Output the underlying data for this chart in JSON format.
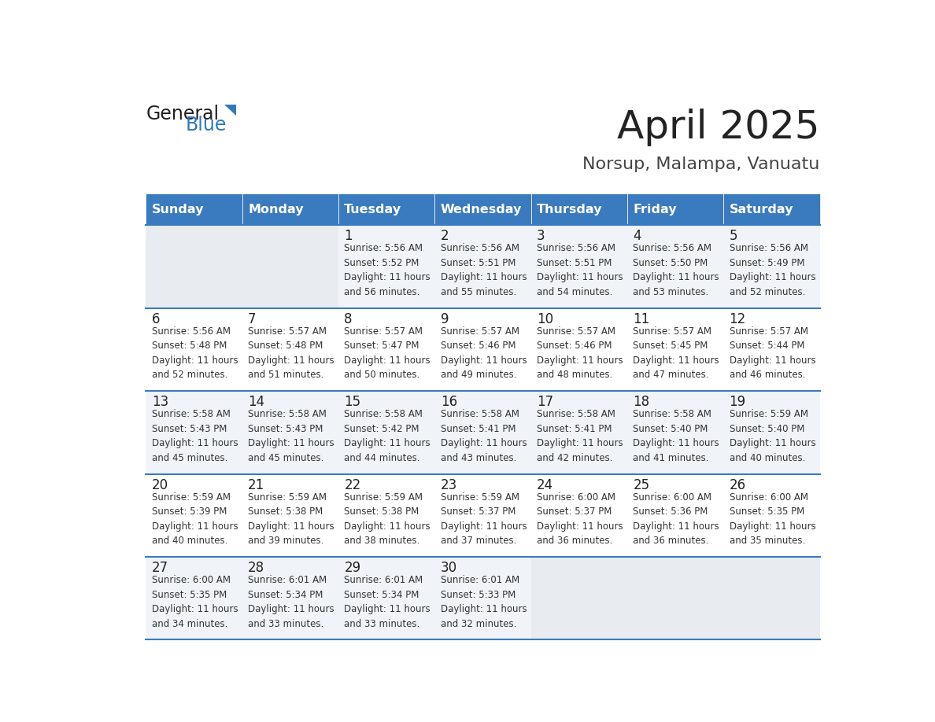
{
  "title": "April 2025",
  "subtitle": "Norsup, Malampa, Vanuatu",
  "days_of_week": [
    "Sunday",
    "Monday",
    "Tuesday",
    "Wednesday",
    "Thursday",
    "Friday",
    "Saturday"
  ],
  "header_bg": "#3a7abf",
  "header_text": "#ffffff",
  "row_bg_odd": "#f0f4f8",
  "row_bg_even": "#ffffff",
  "cell_bg_empty": "#e8ecf0",
  "border_color": "#3a7abf",
  "title_color": "#222222",
  "subtitle_color": "#444444",
  "day_number_color": "#222222",
  "cell_text_color": "#333333",
  "calendar": [
    [
      {
        "day": null,
        "info": ""
      },
      {
        "day": null,
        "info": ""
      },
      {
        "day": 1,
        "info": "Sunrise: 5:56 AM\nSunset: 5:52 PM\nDaylight: 11 hours\nand 56 minutes."
      },
      {
        "day": 2,
        "info": "Sunrise: 5:56 AM\nSunset: 5:51 PM\nDaylight: 11 hours\nand 55 minutes."
      },
      {
        "day": 3,
        "info": "Sunrise: 5:56 AM\nSunset: 5:51 PM\nDaylight: 11 hours\nand 54 minutes."
      },
      {
        "day": 4,
        "info": "Sunrise: 5:56 AM\nSunset: 5:50 PM\nDaylight: 11 hours\nand 53 minutes."
      },
      {
        "day": 5,
        "info": "Sunrise: 5:56 AM\nSunset: 5:49 PM\nDaylight: 11 hours\nand 52 minutes."
      }
    ],
    [
      {
        "day": 6,
        "info": "Sunrise: 5:56 AM\nSunset: 5:48 PM\nDaylight: 11 hours\nand 52 minutes."
      },
      {
        "day": 7,
        "info": "Sunrise: 5:57 AM\nSunset: 5:48 PM\nDaylight: 11 hours\nand 51 minutes."
      },
      {
        "day": 8,
        "info": "Sunrise: 5:57 AM\nSunset: 5:47 PM\nDaylight: 11 hours\nand 50 minutes."
      },
      {
        "day": 9,
        "info": "Sunrise: 5:57 AM\nSunset: 5:46 PM\nDaylight: 11 hours\nand 49 minutes."
      },
      {
        "day": 10,
        "info": "Sunrise: 5:57 AM\nSunset: 5:46 PM\nDaylight: 11 hours\nand 48 minutes."
      },
      {
        "day": 11,
        "info": "Sunrise: 5:57 AM\nSunset: 5:45 PM\nDaylight: 11 hours\nand 47 minutes."
      },
      {
        "day": 12,
        "info": "Sunrise: 5:57 AM\nSunset: 5:44 PM\nDaylight: 11 hours\nand 46 minutes."
      }
    ],
    [
      {
        "day": 13,
        "info": "Sunrise: 5:58 AM\nSunset: 5:43 PM\nDaylight: 11 hours\nand 45 minutes."
      },
      {
        "day": 14,
        "info": "Sunrise: 5:58 AM\nSunset: 5:43 PM\nDaylight: 11 hours\nand 45 minutes."
      },
      {
        "day": 15,
        "info": "Sunrise: 5:58 AM\nSunset: 5:42 PM\nDaylight: 11 hours\nand 44 minutes."
      },
      {
        "day": 16,
        "info": "Sunrise: 5:58 AM\nSunset: 5:41 PM\nDaylight: 11 hours\nand 43 minutes."
      },
      {
        "day": 17,
        "info": "Sunrise: 5:58 AM\nSunset: 5:41 PM\nDaylight: 11 hours\nand 42 minutes."
      },
      {
        "day": 18,
        "info": "Sunrise: 5:58 AM\nSunset: 5:40 PM\nDaylight: 11 hours\nand 41 minutes."
      },
      {
        "day": 19,
        "info": "Sunrise: 5:59 AM\nSunset: 5:40 PM\nDaylight: 11 hours\nand 40 minutes."
      }
    ],
    [
      {
        "day": 20,
        "info": "Sunrise: 5:59 AM\nSunset: 5:39 PM\nDaylight: 11 hours\nand 40 minutes."
      },
      {
        "day": 21,
        "info": "Sunrise: 5:59 AM\nSunset: 5:38 PM\nDaylight: 11 hours\nand 39 minutes."
      },
      {
        "day": 22,
        "info": "Sunrise: 5:59 AM\nSunset: 5:38 PM\nDaylight: 11 hours\nand 38 minutes."
      },
      {
        "day": 23,
        "info": "Sunrise: 5:59 AM\nSunset: 5:37 PM\nDaylight: 11 hours\nand 37 minutes."
      },
      {
        "day": 24,
        "info": "Sunrise: 6:00 AM\nSunset: 5:37 PM\nDaylight: 11 hours\nand 36 minutes."
      },
      {
        "day": 25,
        "info": "Sunrise: 6:00 AM\nSunset: 5:36 PM\nDaylight: 11 hours\nand 36 minutes."
      },
      {
        "day": 26,
        "info": "Sunrise: 6:00 AM\nSunset: 5:35 PM\nDaylight: 11 hours\nand 35 minutes."
      }
    ],
    [
      {
        "day": 27,
        "info": "Sunrise: 6:00 AM\nSunset: 5:35 PM\nDaylight: 11 hours\nand 34 minutes."
      },
      {
        "day": 28,
        "info": "Sunrise: 6:01 AM\nSunset: 5:34 PM\nDaylight: 11 hours\nand 33 minutes."
      },
      {
        "day": 29,
        "info": "Sunrise: 6:01 AM\nSunset: 5:34 PM\nDaylight: 11 hours\nand 33 minutes."
      },
      {
        "day": 30,
        "info": "Sunrise: 6:01 AM\nSunset: 5:33 PM\nDaylight: 11 hours\nand 32 minutes."
      },
      {
        "day": null,
        "info": ""
      },
      {
        "day": null,
        "info": ""
      },
      {
        "day": null,
        "info": ""
      }
    ]
  ]
}
